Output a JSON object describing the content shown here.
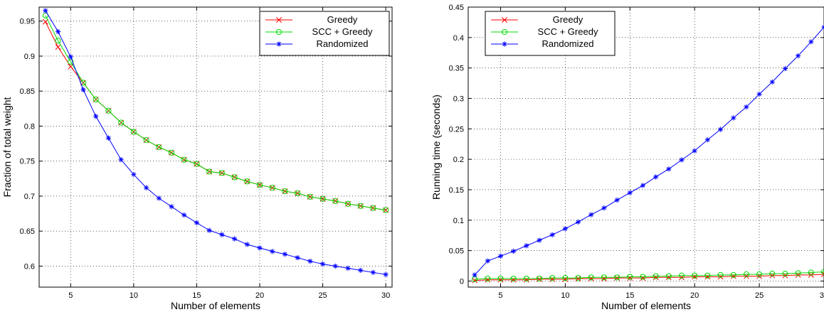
{
  "chart_data": [
    {
      "type": "line",
      "xlabel": "Number of elements",
      "ylabel": "Fraction of total weight",
      "xlim": [
        2.5,
        30.5
      ],
      "ylim": [
        0.57,
        0.97
      ],
      "xticks": [
        5,
        10,
        15,
        20,
        25,
        30
      ],
      "xtick_labels": [
        "5",
        "10",
        "15",
        "20",
        "25",
        "30"
      ],
      "yticks": [
        0.6,
        0.65,
        0.7,
        0.75,
        0.8,
        0.85,
        0.9,
        0.95
      ],
      "ytick_labels": [
        "0.6",
        "0.65",
        "0.7",
        "0.75",
        "0.8",
        "0.85",
        "0.9",
        "0.95"
      ],
      "grid": true,
      "legend_position": "top-right",
      "x": [
        3,
        4,
        5,
        6,
        7,
        8,
        9,
        10,
        11,
        12,
        13,
        14,
        15,
        16,
        17,
        18,
        19,
        20,
        21,
        22,
        23,
        24,
        25,
        26,
        27,
        28,
        29,
        30
      ],
      "series": [
        {
          "name": "Greedy",
          "color": "#ff0000",
          "marker": "x",
          "values": [
            0.949,
            0.913,
            0.885,
            0.862,
            0.838,
            0.822,
            0.805,
            0.792,
            0.78,
            0.77,
            0.762,
            0.752,
            0.746,
            0.735,
            0.733,
            0.727,
            0.721,
            0.716,
            0.712,
            0.707,
            0.704,
            0.699,
            0.696,
            0.693,
            0.689,
            0.686,
            0.683,
            0.68
          ]
        },
        {
          "name": "SCC + Greedy",
          "color": "#00dd00",
          "marker": "o",
          "values": [
            0.958,
            0.922,
            0.892,
            0.862,
            0.838,
            0.822,
            0.805,
            0.792,
            0.78,
            0.77,
            0.762,
            0.752,
            0.746,
            0.735,
            0.733,
            0.727,
            0.721,
            0.716,
            0.712,
            0.707,
            0.704,
            0.699,
            0.696,
            0.693,
            0.689,
            0.686,
            0.683,
            0.68
          ]
        },
        {
          "name": "Randomized",
          "color": "#0000ff",
          "marker": "*",
          "values": [
            0.965,
            0.935,
            0.899,
            0.852,
            0.814,
            0.783,
            0.752,
            0.731,
            0.712,
            0.697,
            0.685,
            0.673,
            0.662,
            0.651,
            0.645,
            0.639,
            0.631,
            0.626,
            0.621,
            0.617,
            0.612,
            0.607,
            0.603,
            0.6,
            0.597,
            0.594,
            0.591,
            0.588
          ]
        }
      ]
    },
    {
      "type": "line",
      "xlabel": "Number of elements",
      "ylabel": "Running time (seconds)",
      "xlim": [
        2.5,
        30
      ],
      "ylim": [
        -0.01,
        0.45
      ],
      "xticks": [
        5,
        10,
        15,
        20,
        25,
        30
      ],
      "xtick_labels": [
        "5",
        "10",
        "15",
        "20",
        "25",
        "30"
      ],
      "yticks": [
        0,
        0.05,
        0.1,
        0.15,
        0.2,
        0.25,
        0.3,
        0.35,
        0.4,
        0.45
      ],
      "ytick_labels": [
        "0",
        "0.05",
        "0.1",
        "0.15",
        "0.2",
        "0.25",
        "0.3",
        "0.35",
        "0.4",
        "0.45"
      ],
      "grid": true,
      "legend_position": "top-left",
      "x": [
        3,
        4,
        5,
        6,
        7,
        8,
        9,
        10,
        11,
        12,
        13,
        14,
        15,
        16,
        17,
        18,
        19,
        20,
        21,
        22,
        23,
        24,
        25,
        26,
        27,
        28,
        29,
        30
      ],
      "series": [
        {
          "name": "Greedy",
          "color": "#ff0000",
          "marker": "x",
          "values": [
            0.001,
            0.002,
            0.002,
            0.002,
            0.002,
            0.003,
            0.003,
            0.003,
            0.004,
            0.004,
            0.004,
            0.005,
            0.005,
            0.005,
            0.006,
            0.006,
            0.006,
            0.007,
            0.007,
            0.007,
            0.008,
            0.008,
            0.008,
            0.009,
            0.009,
            0.01,
            0.01,
            0.011
          ]
        },
        {
          "name": "SCC + Greedy",
          "color": "#00dd00",
          "marker": "o",
          "values": [
            0.003,
            0.004,
            0.004,
            0.004,
            0.004,
            0.004,
            0.005,
            0.005,
            0.005,
            0.006,
            0.006,
            0.006,
            0.007,
            0.007,
            0.008,
            0.008,
            0.009,
            0.009,
            0.009,
            0.01,
            0.01,
            0.011,
            0.011,
            0.012,
            0.012,
            0.013,
            0.014,
            0.015
          ]
        },
        {
          "name": "Randomized",
          "color": "#0000ff",
          "marker": "*",
          "values": [
            0.01,
            0.033,
            0.041,
            0.049,
            0.058,
            0.067,
            0.076,
            0.086,
            0.097,
            0.109,
            0.12,
            0.133,
            0.145,
            0.157,
            0.171,
            0.184,
            0.199,
            0.214,
            0.232,
            0.249,
            0.268,
            0.286,
            0.307,
            0.327,
            0.349,
            0.37,
            0.393,
            0.417
          ]
        }
      ]
    }
  ]
}
